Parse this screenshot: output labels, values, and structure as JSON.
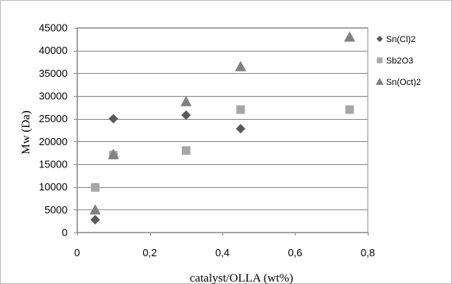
{
  "chart_data": {
    "type": "scatter",
    "title": "",
    "xlabel": "catalyst/OLLA (wt%)",
    "ylabel": "Mw (Da)",
    "xlim": [
      0,
      0.8
    ],
    "ylim": [
      0,
      45000
    ],
    "x_ticks": [
      0,
      0.2,
      0.4,
      0.6,
      0.8
    ],
    "x_tick_labels": [
      "0",
      "0,2",
      "0,4",
      "0,6",
      "0,8"
    ],
    "y_ticks": [
      0,
      5000,
      10000,
      15000,
      20000,
      25000,
      30000,
      35000,
      40000,
      45000
    ],
    "y_tick_labels": [
      "0",
      "5000",
      "10000",
      "15000",
      "20000",
      "25000",
      "30000",
      "35000",
      "40000",
      "45000"
    ],
    "grid": "horizontal",
    "legend_position": "right",
    "series": [
      {
        "name": "Sn(Cl)2",
        "marker": "diamond",
        "color": "#595959",
        "points": [
          [
            0.05,
            2800
          ],
          [
            0.1,
            25000
          ],
          [
            0.3,
            25800
          ],
          [
            0.45,
            22800
          ]
        ]
      },
      {
        "name": "Sb2O3",
        "marker": "square",
        "color": "#a6a6a6",
        "points": [
          [
            0.05,
            9900
          ],
          [
            0.1,
            17000
          ],
          [
            0.3,
            18000
          ],
          [
            0.45,
            27000
          ],
          [
            0.75,
            27000
          ]
        ]
      },
      {
        "name": "Sn(Oct)2",
        "marker": "triangle",
        "color": "#808080",
        "points": [
          [
            0.05,
            5000
          ],
          [
            0.1,
            17200
          ],
          [
            0.3,
            28800
          ],
          [
            0.45,
            36500
          ],
          [
            0.75,
            43000
          ]
        ]
      }
    ]
  }
}
